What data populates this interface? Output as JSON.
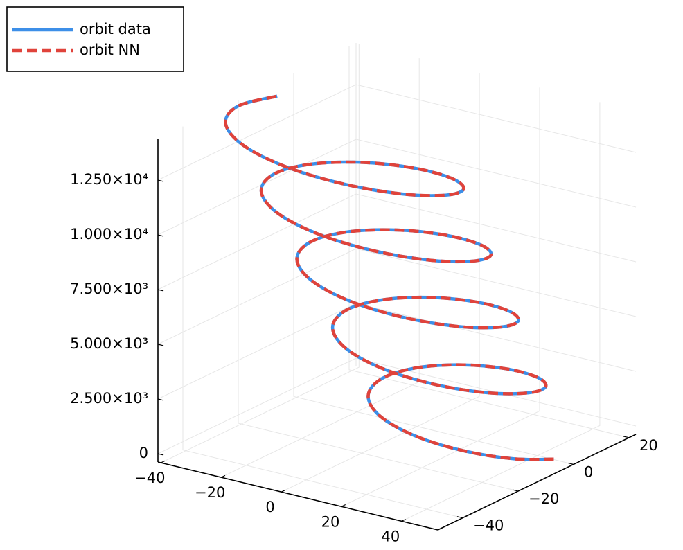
{
  "chart_data": {
    "type": "line3d",
    "legend": "top-left",
    "grid": true,
    "xlim": [
      -41,
      52
    ],
    "ylim": [
      -49,
      22.5
    ],
    "zlim": [
      -380,
      14400
    ],
    "xticks": [
      {
        "value": -40,
        "label": "−40"
      },
      {
        "value": -20,
        "label": "−20"
      },
      0,
      20,
      40
    ],
    "yticks": [
      {
        "value": -40,
        "label": "−40"
      },
      {
        "value": -20,
        "label": "−20"
      },
      0,
      20
    ],
    "zticks": [
      0,
      {
        "value": 2500,
        "label": "2.500×10³"
      },
      {
        "value": 5000,
        "label": "5.000×10³"
      },
      {
        "value": 7500,
        "label": "7.500×10³"
      },
      {
        "value": 10000,
        "label": "1.000×10⁴"
      },
      {
        "value": 12500,
        "label": "1.250×10⁴"
      }
    ],
    "series": [
      {
        "name": "orbit data",
        "color": "#3d8fe8",
        "linestyle": "solid",
        "x": [
          49.0,
          42.5,
          30.1,
          15.0,
          0.8,
          -8.6,
          -10.9,
          -5.6,
          5.8,
          20.1,
          33.4,
          41.8,
          42.8,
          36.1,
          23.1,
          7.1,
          -7.7,
          -17.6,
          -20.0,
          -14.3,
          -2.3,
          12.8,
          26.7,
          35.6,
          36.7,
          29.7,
          16.0,
          -0.7,
          -16.2,
          -26.6,
          -29.1,
          -23.1,
          -10.4,
          5.4,
          20.1,
          29.4,
          30.6,
          23.2,
          9.0,
          -8.5,
          -24.8,
          -35.6,
          -38.2,
          -31.9,
          -18.6,
          -2.0,
          13.4,
          23.2,
          24.5,
          16.8,
          1.9,
          -16.4,
          -33.3,
          -44.6,
          -47.2,
          -40.6
        ],
        "y": [
          -3.9,
          -11.3,
          -16.1,
          -17.2,
          -14.3,
          -8.3,
          -0.8,
          6.0,
          10.3,
          10.9,
          7.5,
          0.9,
          -7.0,
          -14.4,
          -19.2,
          -20.3,
          -17.4,
          -11.4,
          -3.9,
          2.9,
          7.2,
          7.8,
          4.4,
          -2.2,
          -10.1,
          -17.5,
          -22.3,
          -23.4,
          -20.5,
          -14.5,
          -7.0,
          -0.2,
          4.1,
          4.7,
          1.3,
          -5.3,
          -13.2,
          -20.6,
          -25.4,
          -26.5,
          -23.6,
          -17.6,
          -10.1,
          -3.3,
          1.0,
          1.6,
          -1.8,
          -8.4,
          -16.3,
          -23.7,
          -28.5,
          -29.6,
          -26.7,
          -20.7,
          -13.2,
          -6.4
        ],
        "z": [
          0,
          250,
          500,
          750,
          1000,
          1250,
          1500,
          1750,
          2000,
          2250,
          2500,
          2750,
          3000,
          3250,
          3500,
          3750,
          4000,
          4250,
          4500,
          4750,
          5000,
          5250,
          5500,
          5750,
          6000,
          6250,
          6500,
          6750,
          7000,
          7250,
          7500,
          7750,
          8000,
          8250,
          8500,
          8750,
          9000,
          9250,
          9500,
          9750,
          10000,
          10250,
          10500,
          10750,
          11000,
          11250,
          11500,
          11750,
          12000,
          12250,
          12500,
          12750,
          13000,
          13250,
          13500,
          13750
        ]
      },
      {
        "name": "orbit NN",
        "color": "#e0433b",
        "linestyle": "dash",
        "x": [
          49.0,
          42.5,
          30.1,
          15.0,
          0.8,
          -8.6,
          -10.9,
          -5.6,
          5.8,
          20.1,
          33.4,
          41.8,
          42.8,
          36.1,
          23.1,
          7.1,
          -7.7,
          -17.6,
          -20.0,
          -14.3,
          -2.3,
          12.8,
          26.7,
          35.6,
          36.7,
          29.7,
          16.0,
          -0.7,
          -16.2,
          -26.6,
          -29.1,
          -23.1,
          -10.4,
          5.4,
          20.1,
          29.4,
          30.6,
          23.2,
          9.0,
          -8.5,
          -24.8,
          -35.6,
          -38.2,
          -31.9,
          -18.6,
          -2.0,
          13.4,
          23.2,
          24.5,
          16.8,
          1.9,
          -16.4,
          -33.3,
          -44.6,
          -47.2,
          -40.6
        ],
        "y": [
          -3.9,
          -11.3,
          -16.1,
          -17.2,
          -14.3,
          -8.3,
          -0.8,
          6.0,
          10.3,
          10.9,
          7.5,
          0.9,
          -7.0,
          -14.4,
          -19.2,
          -20.3,
          -17.4,
          -11.4,
          -3.9,
          2.9,
          7.2,
          7.8,
          4.4,
          -2.2,
          -10.1,
          -17.5,
          -22.3,
          -23.4,
          -20.5,
          -14.5,
          -7.0,
          -0.2,
          4.1,
          4.7,
          1.3,
          -5.3,
          -13.2,
          -20.6,
          -25.4,
          -26.5,
          -23.6,
          -17.6,
          -10.1,
          -3.3,
          1.0,
          1.6,
          -1.8,
          -8.4,
          -16.3,
          -23.7,
          -28.5,
          -29.6,
          -26.7,
          -20.7,
          -13.2,
          -6.4
        ],
        "z": [
          0,
          250,
          500,
          750,
          1000,
          1250,
          1500,
          1750,
          2000,
          2250,
          2500,
          2750,
          3000,
          3250,
          3500,
          3750,
          4000,
          4250,
          4500,
          4750,
          5000,
          5250,
          5500,
          5750,
          6000,
          6250,
          6500,
          6750,
          7000,
          7250,
          7500,
          7750,
          8000,
          8250,
          8500,
          8750,
          9000,
          9250,
          9500,
          9750,
          10000,
          10250,
          10500,
          10750,
          11000,
          11250,
          11500,
          11750,
          12000,
          12250,
          12500,
          12750,
          13000,
          13250,
          13500,
          13750
        ]
      }
    ]
  }
}
